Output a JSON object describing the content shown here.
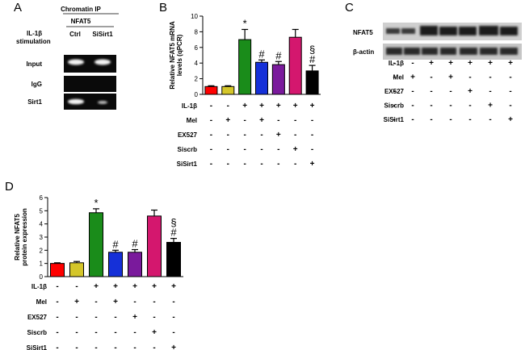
{
  "panels": {
    "A": {
      "letter": "A",
      "header": "Chromatin IP",
      "subheader": "NFAT5",
      "stim_label_1": "IL-1β",
      "stim_label_2": "stimulation",
      "lanes": [
        "Ctrl",
        "SiSirt1"
      ],
      "rows": [
        "Input",
        "IgG",
        "Sirt1"
      ]
    },
    "B": {
      "letter": "B"
    },
    "C": {
      "letter": "C",
      "blot_rows": [
        "NFAT5",
        "β-actin"
      ]
    },
    "D": {
      "letter": "D"
    }
  },
  "treatment_rows": [
    "IL-1β",
    "Mel",
    "EX527",
    "Siscrb",
    "SiSirt1"
  ],
  "treatment_table": [
    [
      "-",
      "-",
      "+",
      "+",
      "+",
      "+",
      "+"
    ],
    [
      "-",
      "+",
      "-",
      "+",
      "-",
      "-",
      "-"
    ],
    [
      "-",
      "-",
      "-",
      "-",
      "+",
      "-",
      "-"
    ],
    [
      "-",
      "-",
      "-",
      "-",
      "-",
      "+",
      "-"
    ],
    [
      "-",
      "-",
      "-",
      "-",
      "-",
      "-",
      "+"
    ]
  ],
  "bar_colors": [
    "#ff0000",
    "#d4c62a",
    "#1a8c1a",
    "#1530d8",
    "#7a1a9c",
    "#d4176e",
    "#000000"
  ],
  "chart_data": [
    {
      "type": "bar",
      "panel": "B",
      "ylabel": "Relative NFAT5 mRNA levels (qPCR)",
      "ylim": [
        0,
        10
      ],
      "yticks": [
        "0",
        "2",
        "4",
        "6",
        "8",
        "10"
      ],
      "values": [
        1.0,
        1.0,
        7.0,
        4.1,
        3.8,
        7.3,
        3.0
      ],
      "errors": [
        0.1,
        0.1,
        1.3,
        0.3,
        0.4,
        1.0,
        0.7
      ],
      "annotations": [
        "",
        "",
        "*",
        "#",
        "#",
        "",
        "§\n#"
      ]
    },
    {
      "type": "bar",
      "panel": "D",
      "ylabel": "Relative NFAT5 protein expression",
      "ylim": [
        0,
        6
      ],
      "yticks": [
        "0",
        "1",
        "2",
        "3",
        "4",
        "5",
        "6"
      ],
      "values": [
        1.0,
        1.05,
        4.85,
        1.85,
        1.85,
        4.6,
        2.6
      ],
      "errors": [
        0.05,
        0.1,
        0.3,
        0.15,
        0.2,
        0.45,
        0.3
      ],
      "annotations": [
        "",
        "",
        "*",
        "#",
        "#",
        "",
        "§\n#"
      ]
    }
  ]
}
